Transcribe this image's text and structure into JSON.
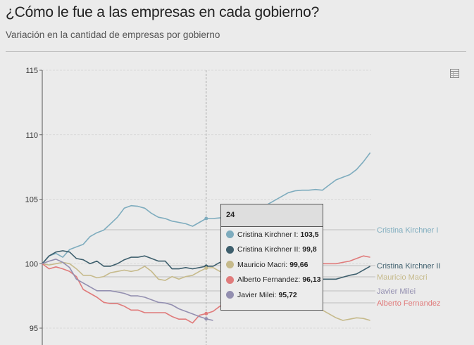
{
  "header": {
    "title": "¿Cómo le fue a las empresas en cada gobierno?",
    "subtitle": "Variación en la cantidad de empresas por gobierno",
    "table_icon": "table-icon"
  },
  "chart_data": {
    "type": "line",
    "title": "¿Cómo le fue a las empresas en cada gobierno?",
    "subtitle": "Variación en la cantidad de empresas por gobierno",
    "xlabel": "",
    "ylabel": "",
    "ylim": [
      95,
      115
    ],
    "xlim": [
      0,
      48
    ],
    "y_ticks": [
      "115",
      "110",
      "105",
      "100",
      "95"
    ],
    "grid": true,
    "legend": "direct labels at right",
    "series": [
      {
        "name": "Cristina Kirchner I",
        "color": "#7eacbe",
        "label_line": 102.63,
        "values": [
          100,
          100.6,
          100.8,
          100.5,
          101.1,
          101.3,
          101.5,
          102.1,
          102.4,
          102.6,
          103.1,
          103.6,
          104.3,
          104.5,
          104.45,
          104.3,
          103.9,
          103.6,
          103.5,
          103.3,
          103.2,
          103.1,
          102.9,
          103.2,
          103.5,
          103.5,
          103.55,
          103.6,
          103.7,
          103.8,
          104.0,
          104.2,
          104.4,
          104.6,
          104.9,
          105.2,
          105.5,
          105.65,
          105.7,
          105.7,
          105.75,
          105.7,
          106.1,
          106.5,
          106.7,
          106.9,
          107.3,
          107.9,
          108.6
        ]
      },
      {
        "name": "Cristina Kirchner II",
        "color": "#3e5f6d",
        "label_line": 99.85,
        "values": [
          100,
          100.6,
          100.9,
          101.0,
          100.9,
          100.4,
          100.3,
          100.0,
          100.2,
          99.8,
          99.8,
          100.0,
          100.3,
          100.5,
          100.5,
          100.6,
          100.4,
          100.2,
          100.2,
          99.6,
          99.6,
          99.7,
          99.6,
          99.7,
          99.8,
          99.8,
          100.1,
          100.2,
          100.1,
          99.9,
          99.8,
          99.6,
          99.5,
          99.3,
          99.2,
          99.1,
          99.0,
          98.9,
          98.9,
          98.8,
          98.8,
          98.8,
          98.8,
          98.8,
          98.95,
          99.1,
          99.2,
          99.5,
          99.8
        ]
      },
      {
        "name": "Mauricio Macri",
        "color": "#c6ba8b",
        "label_line": 98.98,
        "values": [
          100,
          99.9,
          100.0,
          100.1,
          100.0,
          99.6,
          99.1,
          99.1,
          98.9,
          99.0,
          99.3,
          99.4,
          99.5,
          99.4,
          99.5,
          99.8,
          99.4,
          98.8,
          98.7,
          99.0,
          98.8,
          99.0,
          99.1,
          99.4,
          99.66,
          99.7,
          99.4,
          99.2,
          99.0,
          98.8,
          98.6,
          98.4,
          98.2,
          98.0,
          97.8,
          97.6,
          97.4,
          97.2,
          97.0,
          96.8,
          96.6,
          96.4,
          96.1,
          95.8,
          95.6,
          95.7,
          95.8,
          95.75,
          95.6
        ]
      },
      {
        "name": "Alberto Fernandez",
        "color": "#e07b7b",
        "label_line": 96.96,
        "values": [
          100,
          99.6,
          99.75,
          99.6,
          99.4,
          99.0,
          98.0,
          97.7,
          97.4,
          97.0,
          96.9,
          96.9,
          96.7,
          96.4,
          96.4,
          96.2,
          96.2,
          96.2,
          96.2,
          95.9,
          95.7,
          95.7,
          95.4,
          96.0,
          96.13,
          96.3,
          96.7,
          97.0,
          97.4,
          97.8,
          98.1,
          98.4,
          98.7,
          99.0,
          99.2,
          99.4,
          99.6,
          99.7,
          99.8,
          99.9,
          100.0,
          100.0,
          100.0,
          100.0,
          100.1,
          100.2,
          100.4,
          100.6,
          100.5
        ]
      },
      {
        "name": "Javier Milei",
        "color": "#938fb0",
        "label_line": 97.89,
        "values": [
          100,
          100.2,
          100.35,
          100.1,
          99.7,
          98.8,
          98.5,
          98.2,
          97.9,
          97.9,
          97.9,
          97.8,
          97.7,
          97.5,
          97.5,
          97.4,
          97.2,
          97.0,
          96.95,
          96.8,
          96.5,
          96.3,
          96.1,
          95.9,
          95.72,
          95.6
        ]
      }
    ],
    "highlight_x": 24
  },
  "tooltip": {
    "title": "24",
    "rows": [
      {
        "label": "Cristina Kirchner I:",
        "value": "103,5",
        "color": "#7eacbe"
      },
      {
        "label": "Cristina Kirchner II:",
        "value": "99,8",
        "color": "#3e5f6d"
      },
      {
        "label": "Mauricio Macri:",
        "value": "99,66",
        "color": "#c6ba8b"
      },
      {
        "label": "Alberto Fernandez:",
        "value": "96,13",
        "color": "#e07b7b"
      },
      {
        "label": "Javier Milei:",
        "value": "95,72",
        "color": "#938fb0"
      }
    ]
  }
}
